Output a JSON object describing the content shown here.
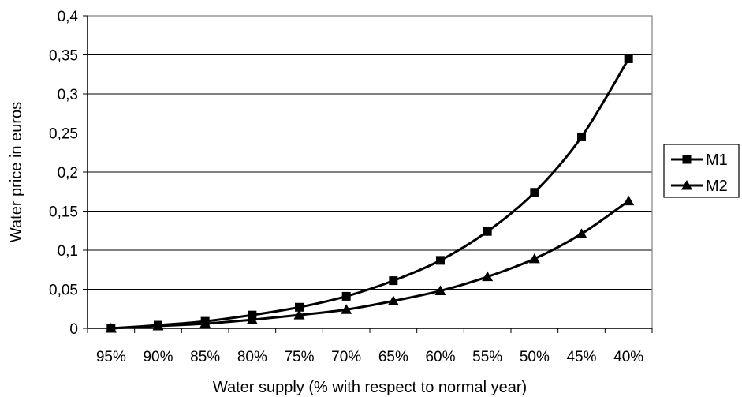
{
  "chart_data": {
    "type": "line",
    "title": "",
    "xlabel": "Water supply (% with respect to normal year)",
    "ylabel": "Water price in euros",
    "categories": [
      "95%",
      "90%",
      "85%",
      "80%",
      "75%",
      "70%",
      "65%",
      "60%",
      "55%",
      "50%",
      "45%",
      "40%"
    ],
    "y_ticks": [
      "0",
      "0,05",
      "0,1",
      "0,15",
      "0,2",
      "0,25",
      "0,3",
      "0,35",
      "0,4"
    ],
    "ylim": [
      0,
      0.4
    ],
    "grid": "horizontal",
    "legend_position": "right",
    "series": [
      {
        "name": "M1",
        "marker": "square",
        "color": "#000000",
        "values": [
          0.0,
          0.004,
          0.009,
          0.017,
          0.027,
          0.041,
          0.061,
          0.087,
          0.124,
          0.174,
          0.245,
          0.345
        ]
      },
      {
        "name": "M2",
        "marker": "triangle",
        "color": "#000000",
        "values": [
          0.0,
          0.003,
          0.006,
          0.011,
          0.017,
          0.024,
          0.035,
          0.048,
          0.066,
          0.089,
          0.121,
          0.163
        ]
      }
    ]
  }
}
